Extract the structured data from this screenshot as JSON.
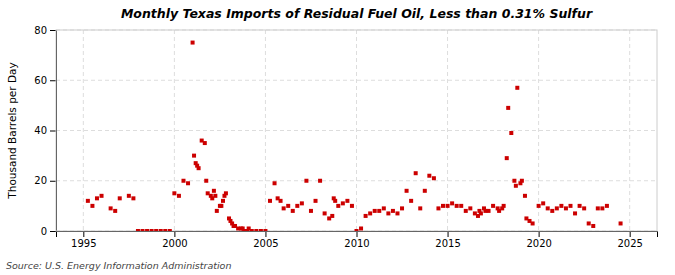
{
  "chart_data": {
    "type": "scatter",
    "title": "Monthly Texas Imports of Residual Fuel Oil, Less than 0.31% Sulfur",
    "ylabel": "Thousand Barrels per Day",
    "annotations": [
      "Source: U.S. Energy Information Administration"
    ],
    "color": "#cc0000",
    "marker": "square",
    "grid": true,
    "xlim": [
      1993.5,
      2026.5
    ],
    "ylim": [
      0,
      80
    ],
    "xticks": [
      1995,
      2000,
      2005,
      2010,
      2015,
      2020,
      2025
    ],
    "yticks": [
      0,
      20,
      40,
      60,
      80
    ],
    "x": [
      1995.25,
      1995.5,
      1995.75,
      1996,
      1996.5,
      1996.75,
      1997,
      1997.5,
      1997.75,
      1998,
      1998.25,
      1998.5,
      1998.75,
      1999,
      1999.25,
      1999.5,
      1999.75,
      2000,
      2000.25,
      2000.5,
      2000.75,
      2001,
      2001.08,
      2001.17,
      2001.25,
      2001.33,
      2001.5,
      2001.67,
      2001.75,
      2001.83,
      2002,
      2002.08,
      2002.17,
      2002.25,
      2002.33,
      2002.5,
      2002.58,
      2002.67,
      2002.75,
      2002.83,
      2003,
      2003.08,
      2003.17,
      2003.25,
      2003.33,
      2003.5,
      2003.67,
      2003.75,
      2003.83,
      2004,
      2004.08,
      2004.25,
      2004.5,
      2004.75,
      2005,
      2005.25,
      2005.5,
      2005.67,
      2005.83,
      2006,
      2006.25,
      2006.5,
      2006.75,
      2007,
      2007.25,
      2007.5,
      2007.75,
      2008,
      2008.25,
      2008.5,
      2008.67,
      2008.75,
      2008.83,
      2009,
      2009.25,
      2009.5,
      2009.75,
      2010,
      2010.25,
      2010.5,
      2010.75,
      2011,
      2011.25,
      2011.5,
      2011.75,
      2012,
      2012.25,
      2012.5,
      2012.75,
      2013,
      2013.25,
      2013.5,
      2013.75,
      2014,
      2014.25,
      2014.5,
      2014.75,
      2015,
      2015.25,
      2015.5,
      2015.75,
      2016,
      2016.25,
      2016.5,
      2016.67,
      2016.75,
      2016.83,
      2017,
      2017.08,
      2017.25,
      2017.5,
      2017.75,
      2017.83,
      2018,
      2018.08,
      2018.25,
      2018.33,
      2018.5,
      2018.67,
      2018.75,
      2018.83,
      2019,
      2019.08,
      2019.25,
      2019.33,
      2019.5,
      2019.67,
      2020,
      2020.25,
      2020.5,
      2020.75,
      2021,
      2021.25,
      2021.5,
      2021.75,
      2022,
      2022.25,
      2022.5,
      2022.75,
      2023,
      2023.25,
      2023.5,
      2023.75,
      2024.5
    ],
    "values": [
      12,
      10,
      13,
      14,
      9,
      8,
      13,
      14,
      13,
      0,
      0,
      0,
      0,
      0,
      0,
      0,
      0,
      15,
      14,
      20,
      19,
      75,
      30,
      27,
      26,
      25,
      36,
      35,
      20,
      15,
      14,
      13,
      16,
      14,
      8,
      10,
      10,
      12,
      14,
      15,
      5,
      4,
      3,
      2,
      2,
      1,
      1,
      1,
      0,
      0,
      1,
      0,
      0,
      0,
      0,
      12,
      19,
      13,
      12,
      9,
      10,
      8,
      10,
      11,
      20,
      8,
      12,
      20,
      7,
      5,
      6,
      13,
      12,
      10,
      11,
      12,
      10,
      0,
      1,
      6,
      7,
      8,
      8,
      9,
      7,
      8,
      7,
      9,
      16,
      12,
      23,
      9,
      16,
      22,
      21,
      9,
      10,
      10,
      11,
      10,
      10,
      8,
      9,
      7,
      6,
      8,
      7,
      9,
      8,
      8,
      10,
      9,
      8,
      9,
      10,
      29,
      49,
      39,
      20,
      18,
      57,
      19,
      20,
      14,
      5,
      4,
      3,
      10,
      11,
      9,
      8,
      9,
      10,
      9,
      10,
      7,
      10,
      9,
      3,
      2,
      9,
      9,
      10,
      3
    ]
  }
}
